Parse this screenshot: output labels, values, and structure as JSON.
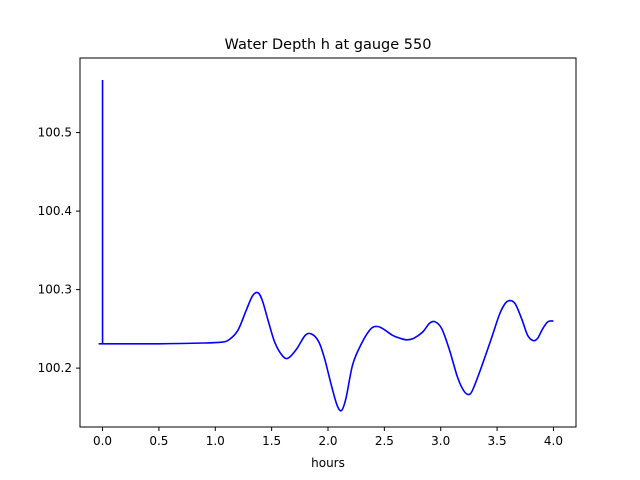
{
  "chart_data": {
    "type": "line",
    "title": "Water Depth h at gauge 550",
    "xlabel": "hours",
    "ylabel": "",
    "xlim": [
      -0.2,
      4.2
    ],
    "ylim": [
      100.125,
      100.595
    ],
    "xticks": [
      0.0,
      0.5,
      1.0,
      1.5,
      2.0,
      2.5,
      3.0,
      3.5,
      4.0
    ],
    "xtick_labels": [
      "0.0",
      "0.5",
      "1.0",
      "1.5",
      "2.0",
      "2.5",
      "3.0",
      "3.5",
      "4.0"
    ],
    "yticks": [
      100.2,
      100.3,
      100.4,
      100.5
    ],
    "ytick_labels": [
      "100.2",
      "100.3",
      "100.4",
      "100.5"
    ],
    "grid": false,
    "legend": "none",
    "series": [
      {
        "color": "#0000ff",
        "x": [
          0.0,
          0.0,
          0.01,
          0.5,
          0.9,
          1.05,
          1.12,
          1.2,
          1.27,
          1.33,
          1.38,
          1.42,
          1.47,
          1.53,
          1.6,
          1.65,
          1.72,
          1.8,
          1.86,
          1.92,
          1.97,
          2.03,
          2.08,
          2.12,
          2.16,
          2.22,
          2.3,
          2.38,
          2.44,
          2.5,
          2.57,
          2.64,
          2.7,
          2.76,
          2.84,
          2.9,
          2.95,
          3.01,
          3.08,
          3.15,
          3.21,
          3.26,
          3.3,
          3.37,
          3.45,
          3.52,
          3.57,
          3.61,
          3.66,
          3.72,
          3.77,
          3.82,
          3.86,
          3.9,
          3.95,
          4.0
        ],
        "y": [
          100.567,
          100.231,
          100.231,
          100.231,
          100.232,
          100.233,
          100.236,
          100.248,
          100.272,
          100.292,
          100.296,
          100.285,
          100.26,
          100.232,
          100.215,
          100.213,
          100.224,
          100.242,
          100.243,
          100.233,
          100.212,
          100.178,
          100.153,
          100.146,
          100.162,
          100.205,
          100.232,
          100.25,
          100.253,
          100.249,
          100.242,
          100.238,
          100.236,
          100.238,
          100.246,
          100.257,
          100.259,
          100.25,
          100.222,
          100.188,
          100.17,
          100.167,
          100.178,
          100.205,
          100.238,
          100.268,
          100.282,
          100.286,
          100.282,
          100.262,
          100.242,
          100.235,
          100.238,
          100.249,
          100.259,
          100.26
        ]
      }
    ]
  }
}
